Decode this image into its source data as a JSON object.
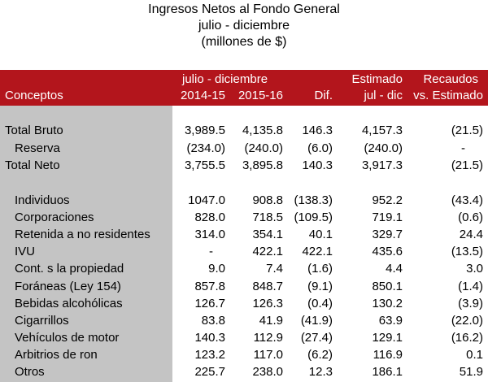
{
  "title": {
    "line1": "Ingresos Netos al Fondo General",
    "line2": "julio - diciembre",
    "line3": "(millones de $)"
  },
  "header": {
    "conceptos": "Conceptos",
    "period_group": "julio - diciembre",
    "col_2014": "2014-15",
    "col_2015": "2015-16",
    "col_dif": "Dif.",
    "estimado_top": "Estimado",
    "estimado_bottom": "jul - dic",
    "recaudos_top": "Recaudos",
    "recaudos_bottom": "vs. Estimado"
  },
  "rows": [
    {
      "label": "Total Bruto",
      "v2014": "3,989.5",
      "v2015": "4,135.8",
      "dif": "146.3",
      "est": "4,157.3",
      "rec": "(21.5)"
    },
    {
      "label": "Reserva",
      "v2014": "(234.0)",
      "v2015": "(240.0)",
      "dif": "(6.0)",
      "est": "(240.0)",
      "rec": "-"
    },
    {
      "label": "Total Neto",
      "v2014": "3,755.5",
      "v2015": "3,895.8",
      "dif": "140.3",
      "est": "3,917.3",
      "rec": "(21.5)"
    },
    {
      "label": "Individuos",
      "v2014": "1047.0",
      "v2015": "908.8",
      "dif": "(138.3)",
      "est": "952.2",
      "rec": "(43.4)"
    },
    {
      "label": "Corporaciones",
      "v2014": "828.0",
      "v2015": "718.5",
      "dif": "(109.5)",
      "est": "719.1",
      "rec": "(0.6)"
    },
    {
      "label": "Retenida a no residentes",
      "v2014": "314.0",
      "v2015": "354.1",
      "dif": "40.1",
      "est": "329.7",
      "rec": "24.4"
    },
    {
      "label": "IVU",
      "v2014": "-",
      "v2015": "422.1",
      "dif": "422.1",
      "est": "435.6",
      "rec": "(13.5)"
    },
    {
      "label": "Cont. s la propiedad",
      "v2014": "9.0",
      "v2015": "7.4",
      "dif": "(1.6)",
      "est": "4.4",
      "rec": "3.0"
    },
    {
      "label": "Foráneas (Ley 154)",
      "v2014": "857.8",
      "v2015": "848.7",
      "dif": "(9.1)",
      "est": "850.1",
      "rec": "(1.4)"
    },
    {
      "label": "Bebidas alcohólicas",
      "v2014": "126.7",
      "v2015": "126.3",
      "dif": "(0.4)",
      "est": "130.2",
      "rec": "(3.9)"
    },
    {
      "label": "Cigarrillos",
      "v2014": "83.8",
      "v2015": "41.9",
      "dif": "(41.9)",
      "est": "63.9",
      "rec": "(22.0)"
    },
    {
      "label": "Vehículos de motor",
      "v2014": "140.3",
      "v2015": "112.9",
      "dif": "(27.4)",
      "est": "129.1",
      "rec": "(16.2)"
    },
    {
      "label": "Arbitrios de ron",
      "v2014": "123.2",
      "v2015": "117.0",
      "dif": "(6.2)",
      "est": "116.9",
      "rec": "0.1"
    },
    {
      "label": "Otros",
      "v2014": "225.7",
      "v2015": "238.0",
      "dif": "12.3",
      "est": "186.1",
      "rec": "51.9"
    }
  ]
}
